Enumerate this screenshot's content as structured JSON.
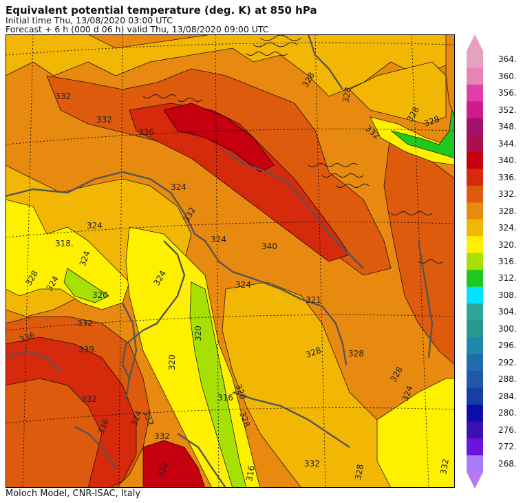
{
  "header": {
    "title": "Equivalent potential temperature (deg. K) at 850 hPa",
    "initial_time": "Initial time  Thu, 13/08/2020  03:00 UTC",
    "forecast": "Forecast  +   6 h  (000 d 06 h)  valid Thu, 13/08/2020 09:00 UTC"
  },
  "footer": {
    "credit": "Moloch Model, CNR-ISAC, Italy"
  },
  "colorbar": {
    "levels": [
      "364.",
      "360.",
      "356.",
      "352.",
      "348.",
      "344.",
      "340.",
      "336.",
      "332.",
      "328.",
      "324.",
      "320.",
      "316.",
      "312.",
      "308.",
      "304.",
      "300.",
      "296.",
      "292.",
      "288.",
      "284.",
      "280.",
      "276.",
      "272.",
      "268."
    ],
    "colors": [
      "#e4a2c0",
      "#e985b5",
      "#df3fa6",
      "#d01b8e",
      "#a0116e",
      "#ae0e4f",
      "#c6000f",
      "#d62a0d",
      "#de5a0d",
      "#e88a0f",
      "#f2b705",
      "#fff000",
      "#a6e004",
      "#1fc81e",
      "#00e4ff",
      "#2da69a",
      "#28998f",
      "#1f88a8",
      "#1e6caa",
      "#1e58a6",
      "#153fa4",
      "#0d0da9",
      "#3a10b0",
      "#6e12dd",
      "#a87cf8"
    ],
    "top_color": "#e4a2c0",
    "bottom_color": "#b77af2"
  },
  "map": {
    "fill_colors": {
      "c316": "#a6e004",
      "c320": "#fff000",
      "c324": "#f2b705",
      "c328": "#e88a0f",
      "c332": "#de5a0d",
      "c336": "#d62a0d",
      "c340": "#c6000f",
      "c312": "#1fc81e"
    },
    "contour_labels": [
      "332",
      "332",
      "336",
      "324",
      "328",
      "328",
      "328",
      "332",
      "328",
      "318.",
      "324",
      "328",
      "324",
      "320",
      "324",
      "324",
      "332",
      "340",
      "324",
      "324",
      "321",
      "336",
      "339.",
      "332",
      "320",
      "320",
      "328",
      "328",
      "328",
      "324",
      "332",
      "316",
      "320",
      "328",
      "324",
      "316",
      "332",
      "336",
      "332",
      "332",
      "332",
      "328",
      "332"
    ]
  }
}
